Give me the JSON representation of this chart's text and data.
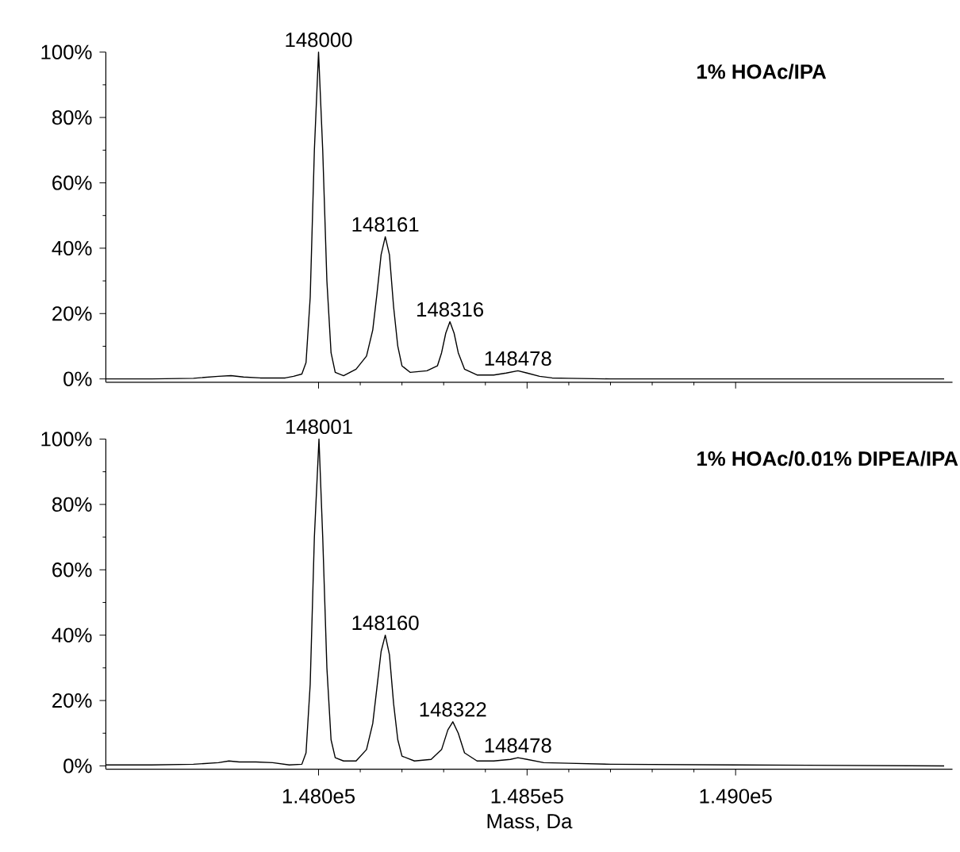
{
  "chart_data": [
    {
      "type": "line",
      "tick_labels": "y",
      "xticks": [
        {
          "value": 148000,
          "label": null
        },
        {
          "value": 148500,
          "label": null
        },
        {
          "value": 149000,
          "label": null
        }
      ],
      "x": [
        147490,
        147600,
        147700,
        147760,
        147790,
        147820,
        147860,
        147920,
        147940,
        147960,
        147970,
        147980,
        147990,
        148000,
        148010,
        148020,
        148030,
        148040,
        148060,
        148090,
        148115,
        148130,
        148140,
        148150,
        148160,
        148170,
        148180,
        148190,
        148200,
        148220,
        148260,
        148285,
        148295,
        148305,
        148315,
        148325,
        148335,
        148350,
        148380,
        148420,
        148450,
        148478,
        148500,
        148530,
        148560,
        148600,
        148700,
        149000,
        149500
      ],
      "series": [
        {
          "color": "#000000",
          "values": [
            0,
            0,
            0.2,
            0.8,
            1,
            0.6,
            0.3,
            0.3,
            0.8,
            1.5,
            5,
            25,
            70,
            100,
            70,
            30,
            8,
            2,
            1,
            3,
            7,
            15,
            26,
            38,
            43.5,
            38,
            22,
            10,
            4,
            2,
            2.5,
            4,
            8,
            14,
            17.5,
            14,
            8,
            3,
            1.2,
            1.2,
            1.8,
            2.5,
            1.8,
            0.8,
            0.3,
            0.2,
            0,
            0,
            0
          ]
        }
      ],
      "xlim": [
        147490,
        149520
      ],
      "ylim": [
        -1,
        100
      ],
      "yticks": [
        {
          "value": 0,
          "label": "0%"
        },
        {
          "value": 20,
          "label": "20%"
        },
        {
          "value": 40,
          "label": "40%"
        },
        {
          "value": 60,
          "label": "60%"
        },
        {
          "value": 80,
          "label": "80%"
        },
        {
          "value": 100,
          "label": "100%"
        }
      ],
      "annotations": [
        "**1% HOAc/IPA**",
        {
          "text": "148000",
          "x": 148000,
          "y": 100
        },
        {
          "text": "148161",
          "x": 148160,
          "y": 43.5
        },
        {
          "text": "148316",
          "x": 148315,
          "y": 17.5
        },
        {
          "text": "148478",
          "x": 148478,
          "y": 2.5
        }
      ]
    },
    {
      "type": "line",
      "xlabel": "Mass, Da",
      "x": [
        147490,
        147600,
        147700,
        147760,
        147785,
        147810,
        147850,
        147890,
        147930,
        147960,
        147970,
        147980,
        147990,
        148001,
        148010,
        148020,
        148030,
        148040,
        148060,
        148090,
        148115,
        148130,
        148140,
        148150,
        148160,
        148170,
        148180,
        148190,
        148200,
        148230,
        148270,
        148295,
        148310,
        148322,
        148335,
        148350,
        148380,
        148420,
        148460,
        148478,
        148500,
        148540,
        148600,
        148700,
        149000,
        149500
      ],
      "series": [
        {
          "color": "#000000",
          "values": [
            0.3,
            0.3,
            0.5,
            1,
            1.5,
            1.2,
            1.2,
            1,
            0.3,
            0.5,
            4,
            25,
            70,
            100,
            70,
            30,
            8,
            2.5,
            1.5,
            1.5,
            5,
            13,
            24,
            35,
            40,
            34,
            19,
            8,
            3,
            1.5,
            2,
            5,
            11,
            13.5,
            10,
            4,
            1.5,
            1.5,
            2,
            2.5,
            2,
            1,
            0.8,
            0.5,
            0.3,
            0
          ]
        }
      ],
      "xlim": [
        147490,
        149520
      ],
      "ylim": [
        -1,
        100
      ],
      "xticks": [
        {
          "value": 148000,
          "label": "1.480e5"
        },
        {
          "value": 148500,
          "label": "1.485e5"
        },
        {
          "value": 149000,
          "label": "1.490e5"
        }
      ],
      "yticks": [
        {
          "value": 0,
          "label": "0%"
        },
        {
          "value": 20,
          "label": "20%"
        },
        {
          "value": 40,
          "label": "40%"
        },
        {
          "value": 60,
          "label": "60%"
        },
        {
          "value": 80,
          "label": "80%"
        },
        {
          "value": 100,
          "label": "100%"
        }
      ],
      "annotations": [
        "**1% HOAc/0.01% DIPEA/IPA**",
        {
          "text": "148001",
          "x": 148001,
          "y": 100
        },
        {
          "text": "148160",
          "x": 148160,
          "y": 40
        },
        {
          "text": "148322",
          "x": 148322,
          "y": 13.5
        },
        {
          "text": "148478",
          "x": 148478,
          "y": 2.5
        }
      ]
    }
  ]
}
